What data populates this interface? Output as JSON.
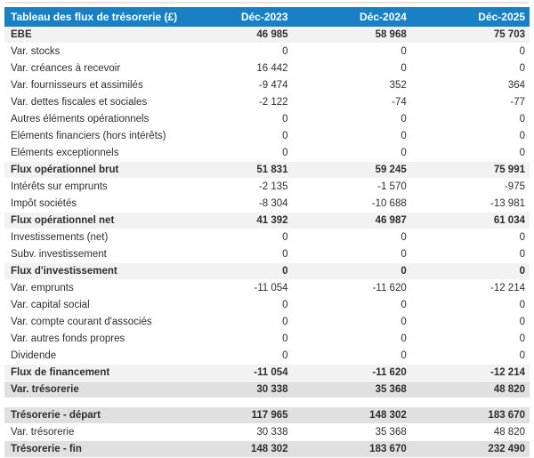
{
  "colors": {
    "header_bg": "#1a80c4",
    "header_fg": "#ffffff",
    "subtotal_bg": "#f2f2f2",
    "total_bg": "#e0e0e0"
  },
  "table": {
    "title": "Tableau des flux de trésorerie (£)",
    "columns": [
      "Déc-2023",
      "Déc-2024",
      "Déc-2025"
    ],
    "rows": [
      {
        "label": "EBE",
        "values": [
          "46 985",
          "58 968",
          "75 703"
        ],
        "style": "subtotal"
      },
      {
        "label": "Var. stocks",
        "values": [
          "0",
          "0",
          "0"
        ],
        "style": "normal"
      },
      {
        "label": "Var. créances à recevoir",
        "values": [
          "16 442",
          "0",
          "0"
        ],
        "style": "normal"
      },
      {
        "label": "Var. fournisseurs et assimilés",
        "values": [
          "-9 474",
          "352",
          "364"
        ],
        "style": "normal"
      },
      {
        "label": "Var. dettes fiscales et sociales",
        "values": [
          "-2 122",
          "-74",
          "-77"
        ],
        "style": "normal"
      },
      {
        "label": "Autres éléments opérationnels",
        "values": [
          "0",
          "0",
          "0"
        ],
        "style": "normal"
      },
      {
        "label": "Eléments financiers (hors intérêts)",
        "values": [
          "0",
          "0",
          "0"
        ],
        "style": "normal"
      },
      {
        "label": "Eléments exceptionnels",
        "values": [
          "0",
          "0",
          "0"
        ],
        "style": "normal"
      },
      {
        "label": "Flux opérationnel brut",
        "values": [
          "51 831",
          "59 245",
          "75 991"
        ],
        "style": "subtotal"
      },
      {
        "label": "Intérêts sur emprunts",
        "values": [
          "-2 135",
          "-1 570",
          "-975"
        ],
        "style": "normal"
      },
      {
        "label": "Impôt sociétés",
        "values": [
          "-8 304",
          "-10 688",
          "-13 981"
        ],
        "style": "normal"
      },
      {
        "label": "Flux opérationnel net",
        "values": [
          "41 392",
          "46 987",
          "61 034"
        ],
        "style": "subtotal"
      },
      {
        "label": "Investissements (net)",
        "values": [
          "0",
          "0",
          "0"
        ],
        "style": "normal"
      },
      {
        "label": "Subv. investissement",
        "values": [
          "0",
          "0",
          "0"
        ],
        "style": "normal"
      },
      {
        "label": "Flux d'investissement",
        "values": [
          "0",
          "0",
          "0"
        ],
        "style": "subtotal"
      },
      {
        "label": "Var. emprunts",
        "values": [
          "-11 054",
          "-11 620",
          "-12 214"
        ],
        "style": "normal"
      },
      {
        "label": "Var. capital social",
        "values": [
          "0",
          "0",
          "0"
        ],
        "style": "normal"
      },
      {
        "label": "Var. compte courant d'associés",
        "values": [
          "0",
          "0",
          "0"
        ],
        "style": "normal"
      },
      {
        "label": "Var. autres fonds propres",
        "values": [
          "0",
          "0",
          "0"
        ],
        "style": "normal"
      },
      {
        "label": "Dividende",
        "values": [
          "0",
          "0",
          "0"
        ],
        "style": "normal"
      },
      {
        "label": "Flux de financement",
        "values": [
          "-11 054",
          "-11 620",
          "-12 214"
        ],
        "style": "subtotal"
      },
      {
        "label": "Var. trésorerie",
        "values": [
          "30 338",
          "35 368",
          "48 820"
        ],
        "style": "total"
      },
      {
        "type": "spacer"
      },
      {
        "label": "Trésorerie - départ",
        "values": [
          "117 965",
          "148 302",
          "183 670"
        ],
        "style": "total"
      },
      {
        "label": "Var. trésorerie",
        "values": [
          "30 338",
          "35 368",
          "48 820"
        ],
        "style": "normal"
      },
      {
        "label": "Trésorerie - fin",
        "values": [
          "148 302",
          "183 670",
          "232 490"
        ],
        "style": "total"
      }
    ]
  }
}
